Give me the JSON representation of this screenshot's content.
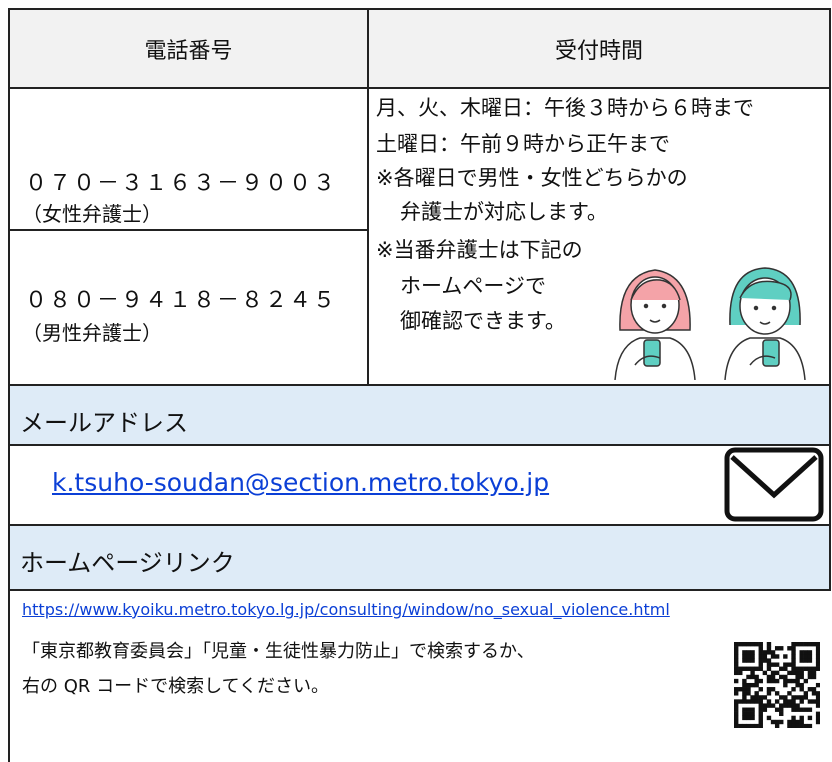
{
  "header": {
    "phone": "電話番号",
    "hours": "受付時間"
  },
  "phones": [
    {
      "number": "０７０－３１６３－９００３",
      "label": "（女性弁護士）"
    },
    {
      "number": "０８０－９４１８－８２４５",
      "label": "（男性弁護士）"
    }
  ],
  "hours": [
    "月、火、木曜日：午後３時から６時まで",
    "土曜日：午前９時から正午まで",
    "※各曜日で男性・女性どちらかの",
    "弁護士が対応します。",
    "※当番弁護士は下記の",
    "ホームページで",
    "御確認できます。"
  ],
  "email": {
    "title": "メールアドレス",
    "address": "k.tsuho-soudan@section.metro.tokyo.jp"
  },
  "homepage": {
    "title": "ホームページリンク",
    "url": "https://www.kyoiku.metro.tokyo.lg.jp/consulting/window/no_sexual_violence.html",
    "description": [
      "「東京都教育委員会」「児童・生徒性暴力防止」で検索するか、",
      "右の QR コードで検索してください。"
    ]
  }
}
